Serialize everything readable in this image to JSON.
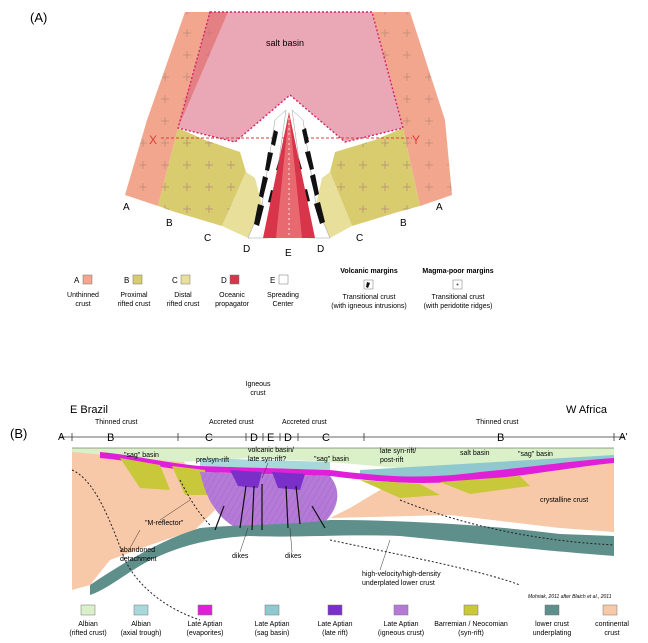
{
  "panel_a": {
    "label": "(A)",
    "salt_basin": "salt basin",
    "section_x": "X",
    "section_y": "Y",
    "zone_letters": {
      "left_a": "A",
      "left_b": "B",
      "left_c": "C",
      "left_d": "D",
      "center_e": "E",
      "right_d": "D",
      "right_c": "C",
      "right_b": "B",
      "right_a": "A"
    },
    "legend": [
      {
        "letter": "A",
        "line1": "Unthinned",
        "line2": "crust",
        "color": "#f2a68e"
      },
      {
        "letter": "B",
        "line1": "Proximal",
        "line2": "rifted crust",
        "color": "#d8cc6e"
      },
      {
        "letter": "C",
        "line1": "Distal",
        "line2": "rifted crust",
        "color": "#e8e09a"
      },
      {
        "letter": "D",
        "line1": "Oceanic",
        "line2": "propagator",
        "color": "#d8344a"
      },
      {
        "letter": "E",
        "line1": "Spreading",
        "line2": "Center",
        "color": "#ffffff"
      }
    ],
    "volcanic": {
      "title": "Volcanic margins",
      "line1": "Transitional crust",
      "line2": "(with igneous intrusions)"
    },
    "magma_poor": {
      "title": "Magma-poor margins",
      "line1": "Transitional crust",
      "line2": "(with peridotite ridges)"
    }
  },
  "panel_b": {
    "label": "(B)",
    "left_title": "E Brazil",
    "right_title": "W Africa",
    "end_left": "A",
    "end_right": "A'",
    "thinned_left": "Thinned crust",
    "thinned_right": "Thinned crust",
    "igneous_line1": "Igneous",
    "igneous_line2": "crust",
    "accreted_left": "Accreted crust",
    "accreted_right": "Accreted crust",
    "zones": [
      "B",
      "C",
      "D",
      "E",
      "D",
      "C",
      "B"
    ],
    "labels": {
      "sag_left": "\"sag\" basin",
      "pre_syn_rift": "pre/syn-rift",
      "volcanic_line1": "volcanic basin/",
      "volcanic_line2": "late syn-rift?",
      "sag_center": "\"sag\" basin",
      "late_syn_line1": "late syn-rift/",
      "late_syn_line2": "post-rift",
      "salt_basin": "salt basin",
      "sag_right": "\"sag\" basin",
      "crystalline": "crystalline crust",
      "m_reflector": "\"M-reflector\"",
      "abandoned_line1": "abandoned",
      "abandoned_line2": "detachment",
      "dikes_left": "dikes",
      "dikes_right": "dikes",
      "hv_line1": "high-velocity/high-density",
      "hv_line2": "underplated lower crust"
    },
    "credit": "Mohriak, 2011 after Blaich et al., 2011",
    "legend": [
      {
        "line1": "Albian",
        "line2": "(rifted crust)",
        "color": "#d9f0c8"
      },
      {
        "line1": "Albian",
        "line2": "(axial trough)",
        "color": "#a9d8da"
      },
      {
        "line1": "Late Aptian",
        "line2": "(evaporites)",
        "color": "#e020d8"
      },
      {
        "line1": "Late Aptian",
        "line2": "(sag basin)",
        "color": "#8fc9cf"
      },
      {
        "line1": "Late Aptian",
        "line2": "(late rift)",
        "color": "#7a2fc8"
      },
      {
        "line1": "Late Aptian",
        "line2": "(igneous crust)",
        "color": "#b57ad8"
      },
      {
        "line1": "Barremian / Neocomian",
        "line2": "(syn-rift)",
        "color": "#c9c83a"
      },
      {
        "line1": "lower crust",
        "line2": "underplating",
        "color": "#5f8f8a"
      },
      {
        "line1": "continental",
        "line2": "crust",
        "color": "#f7c9a8"
      }
    ]
  }
}
